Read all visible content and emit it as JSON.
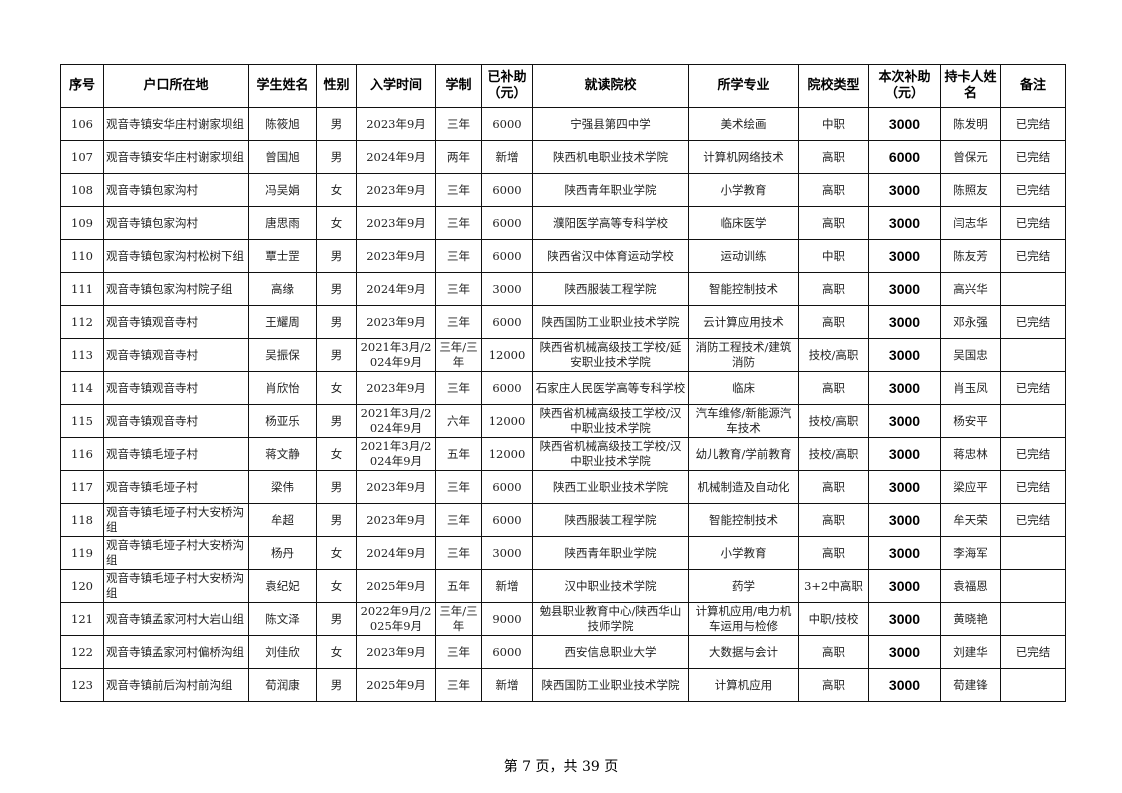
{
  "headers": [
    "序号",
    "户口所在地",
    "学生姓名",
    "性别",
    "入学时间",
    "学制",
    "已补助（元）",
    "就读院校",
    "所学专业",
    "院校类型",
    "本次补助（元）",
    "持卡人姓名",
    "备注"
  ],
  "rows": [
    [
      "106",
      "观音寺镇安华庄村谢家坝组",
      "陈筱旭",
      "男",
      "2023年9月",
      "三年",
      "6000",
      "宁强县第四中学",
      "美术绘画",
      "中职",
      "3000",
      "陈发明",
      "已完结"
    ],
    [
      "107",
      "观音寺镇安华庄村谢家坝组",
      "曾国旭",
      "男",
      "2024年9月",
      "两年",
      "新增",
      "陕西机电职业技术学院",
      "计算机网络技术",
      "高职",
      "6000",
      "曾保元",
      "已完结"
    ],
    [
      "108",
      "观音寺镇包家沟村",
      "冯吴娟",
      "女",
      "2023年9月",
      "三年",
      "6000",
      "陕西青年职业学院",
      "小学教育",
      "高职",
      "3000",
      "陈照友",
      "已完结"
    ],
    [
      "109",
      "观音寺镇包家沟村",
      "唐思雨",
      "女",
      "2023年9月",
      "三年",
      "6000",
      "濮阳医学高等专科学校",
      "临床医学",
      "高职",
      "3000",
      "闫志华",
      "已完结"
    ],
    [
      "110",
      "观音寺镇包家沟村松树下组",
      "覃士罡",
      "男",
      "2023年9月",
      "三年",
      "6000",
      "陕西省汉中体育运动学校",
      "运动训练",
      "中职",
      "3000",
      "陈友芳",
      "已完结"
    ],
    [
      "111",
      "观音寺镇包家沟村院子组",
      "高缘",
      "男",
      "2024年9月",
      "三年",
      "3000",
      "陕西服装工程学院",
      "智能控制技术",
      "高职",
      "3000",
      "高兴华",
      ""
    ],
    [
      "112",
      "观音寺镇观音寺村",
      "王耀周",
      "男",
      "2023年9月",
      "三年",
      "6000",
      "陕西国防工业职业技术学院",
      "云计算应用技术",
      "高职",
      "3000",
      "邓永强",
      "已完结"
    ],
    [
      "113",
      "观音寺镇观音寺村",
      "吴振保",
      "男",
      "2021年3月/2024年9月",
      "三年/三年",
      "12000",
      "陕西省机械高级技工学校/延安职业技术学院",
      "消防工程技术/建筑消防",
      "技校/高职",
      "3000",
      "吴国忠",
      ""
    ],
    [
      "114",
      "观音寺镇观音寺村",
      "肖欣怡",
      "女",
      "2023年9月",
      "三年",
      "6000",
      "石家庄人民医学高等专科学校",
      "临床",
      "高职",
      "3000",
      "肖玉凤",
      "已完结"
    ],
    [
      "115",
      "观音寺镇观音寺村",
      "杨亚乐",
      "男",
      "2021年3月/2024年9月",
      "六年",
      "12000",
      "陕西省机械高级技工学校/汉中职业技术学院",
      "汽车维修/新能源汽车技术",
      "技校/高职",
      "3000",
      "杨安平",
      ""
    ],
    [
      "116",
      "观音寺镇毛垭子村",
      "蒋文静",
      "女",
      "2021年3月/2024年9月",
      "五年",
      "12000",
      "陕西省机械高级技工学校/汉中职业技术学院",
      "幼儿教育/学前教育",
      "技校/高职",
      "3000",
      "蒋忠林",
      "已完结"
    ],
    [
      "117",
      "观音寺镇毛垭子村",
      "梁伟",
      "男",
      "2023年9月",
      "三年",
      "6000",
      "陕西工业职业技术学院",
      "机械制造及自动化",
      "高职",
      "3000",
      "梁应平",
      "已完结"
    ],
    [
      "118",
      "观音寺镇毛垭子村大安桥沟组",
      "牟超",
      "男",
      "2023年9月",
      "三年",
      "6000",
      "陕西服装工程学院",
      "智能控制技术",
      "高职",
      "3000",
      "牟天荣",
      "已完结"
    ],
    [
      "119",
      "观音寺镇毛垭子村大安桥沟组",
      "杨丹",
      "女",
      "2024年9月",
      "三年",
      "3000",
      "陕西青年职业学院",
      "小学教育",
      "高职",
      "3000",
      "李海军",
      ""
    ],
    [
      "120",
      "观音寺镇毛垭子村大安桥沟组",
      "袁纪妃",
      "女",
      "2025年9月",
      "五年",
      "新增",
      "汉中职业技术学院",
      "药学",
      "3+2中高职",
      "3000",
      "袁福恩",
      ""
    ],
    [
      "121",
      "观音寺镇孟家河村大岩山组",
      "陈文泽",
      "男",
      "2022年9月/2025年9月",
      "三年/三年",
      "9000",
      "勉县职业教育中心/陕西华山技师学院",
      "计算机应用/电力机车运用与检修",
      "中职/技校",
      "3000",
      "黄晓艳",
      ""
    ],
    [
      "122",
      "观音寺镇孟家河村偏桥沟组",
      "刘佳欣",
      "女",
      "2023年9月",
      "三年",
      "6000",
      "西安信息职业大学",
      "大数据与会计",
      "高职",
      "3000",
      "刘建华",
      "已完结"
    ],
    [
      "123",
      "观音寺镇前后沟村前沟组",
      "荀润康",
      "男",
      "2025年9月",
      "三年",
      "新增",
      "陕西国防工业职业技术学院",
      "计算机应用",
      "高职",
      "3000",
      "荀建锋",
      ""
    ]
  ],
  "footer": "第 7 页，共 39 页"
}
